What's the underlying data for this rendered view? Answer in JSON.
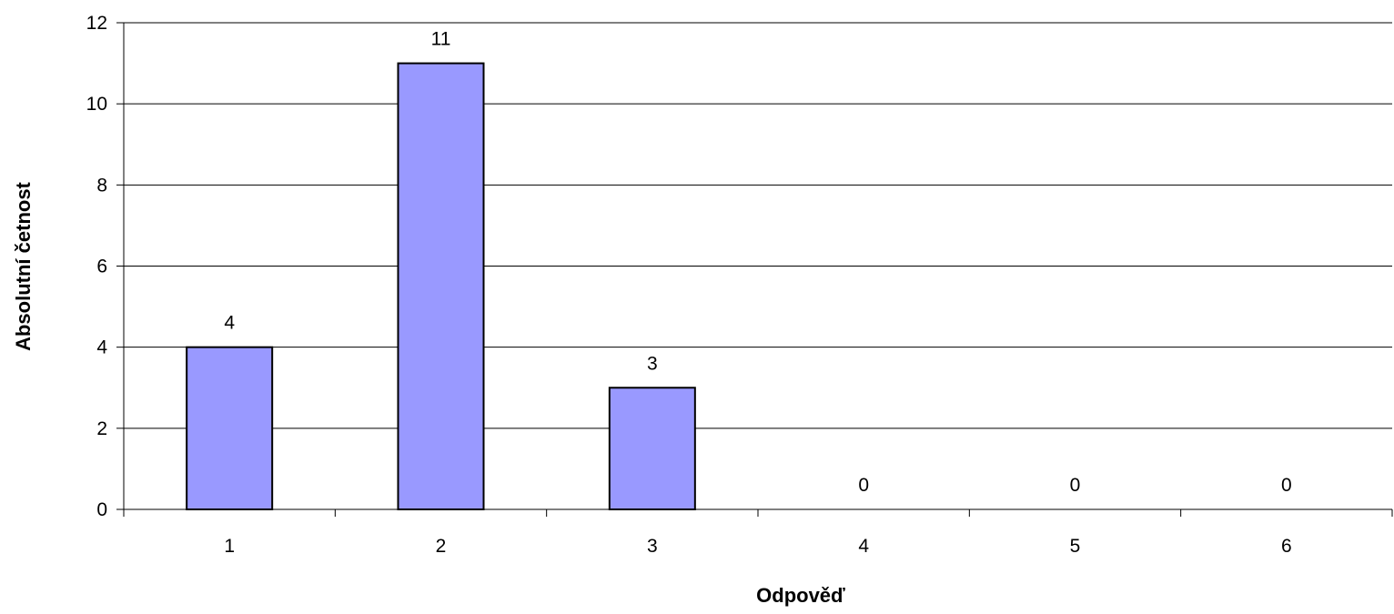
{
  "chart_data": {
    "type": "bar",
    "title": "",
    "xlabel": "Odpověď",
    "ylabel": "Absolutní četnost",
    "categories": [
      "1",
      "2",
      "3",
      "4",
      "5",
      "6"
    ],
    "values": [
      4,
      11,
      3,
      0,
      0,
      0
    ],
    "data_labels": [
      "4",
      "11",
      "3",
      "0",
      "0",
      "0"
    ],
    "ylim": [
      0,
      12
    ],
    "yticks": [
      0,
      2,
      4,
      6,
      8,
      10,
      12
    ],
    "grid": "horizontal",
    "legend": "none",
    "colors": {
      "bar_fill": "#9999ff",
      "bar_stroke": "#000000",
      "grid": "#000000",
      "axis": "#000000",
      "background": "#ffffff"
    }
  }
}
